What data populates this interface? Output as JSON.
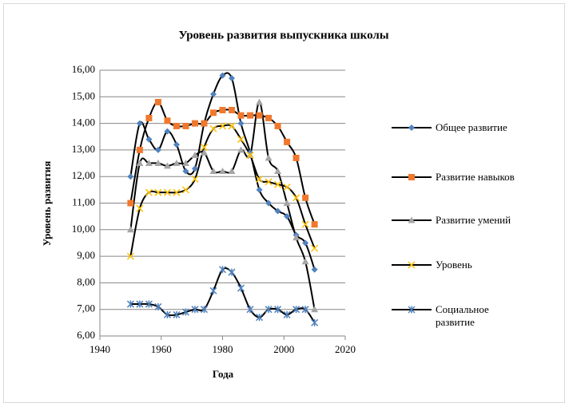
{
  "chart_data": {
    "type": "scatter-smooth",
    "title": "Уровень развития выпускника школы",
    "xlabel": "Года",
    "ylabel": "Уровень развития",
    "x": [
      1950,
      1953,
      1956,
      1959,
      1962,
      1965,
      1968,
      1971,
      1974,
      1977,
      1980,
      1983,
      1986,
      1989,
      1992,
      1995,
      1998,
      2001,
      2004,
      2007,
      2010
    ],
    "xlim": [
      1940,
      2020
    ],
    "xticks": [
      1940,
      1960,
      1980,
      2000,
      2020
    ],
    "ylim": [
      6,
      16
    ],
    "yticks": [
      {
        "value": 6,
        "label": "6,00"
      },
      {
        "value": 7,
        "label": "7,00"
      },
      {
        "value": 8,
        "label": "8,00"
      },
      {
        "value": 9,
        "label": "9,00"
      },
      {
        "value": 10,
        "label": "10,00"
      },
      {
        "value": 11,
        "label": "11,00"
      },
      {
        "value": 12,
        "label": "12,00"
      },
      {
        "value": 13,
        "label": "13,00"
      },
      {
        "value": 14,
        "label": "14,00"
      },
      {
        "value": 15,
        "label": "15,00"
      },
      {
        "value": 16,
        "label": "16,00"
      }
    ],
    "grid": true,
    "legend": "right",
    "line_color": "#000000",
    "series": [
      {
        "name": "Общее развитие",
        "color": "#4F81BD",
        "marker": "diamond",
        "values": [
          12.0,
          14.0,
          13.4,
          13.0,
          13.7,
          13.2,
          12.2,
          12.3,
          14.0,
          15.1,
          15.8,
          15.7,
          14.0,
          12.9,
          11.5,
          11.0,
          10.7,
          10.5,
          9.8,
          9.5,
          8.5
        ]
      },
      {
        "name": "Развитие навыков",
        "color": "#F0782D",
        "marker": "square",
        "values": [
          11.0,
          13.0,
          14.2,
          14.8,
          14.1,
          13.9,
          13.9,
          14.0,
          14.0,
          14.4,
          14.5,
          14.5,
          14.3,
          14.3,
          14.3,
          14.2,
          13.9,
          13.3,
          12.7,
          11.2,
          10.2
        ]
      },
      {
        "name": "Развитие умений",
        "color": "#A5A5A5",
        "marker": "triangle",
        "values": [
          10.0,
          12.5,
          12.5,
          12.5,
          12.4,
          12.5,
          12.5,
          12.8,
          12.9,
          12.2,
          12.2,
          12.2,
          13.0,
          12.8,
          14.8,
          12.7,
          12.2,
          11.0,
          9.7,
          8.8,
          7.0
        ]
      },
      {
        "name": "Уровень",
        "color": "#FFC000",
        "marker": "x",
        "values": [
          9.0,
          10.8,
          11.4,
          11.4,
          11.4,
          11.4,
          11.5,
          11.9,
          13.1,
          13.8,
          13.9,
          13.9,
          13.4,
          12.8,
          11.9,
          11.8,
          11.7,
          11.6,
          11.2,
          10.2,
          9.3
        ]
      },
      {
        "name": "Социальное развитие",
        "color": "#4F81BD",
        "marker": "star",
        "values": [
          7.2,
          7.2,
          7.2,
          7.1,
          6.8,
          6.8,
          6.9,
          7.0,
          7.0,
          7.7,
          8.5,
          8.4,
          7.8,
          7.0,
          6.7,
          7.0,
          7.0,
          6.8,
          7.0,
          7.0,
          6.5
        ]
      }
    ]
  }
}
